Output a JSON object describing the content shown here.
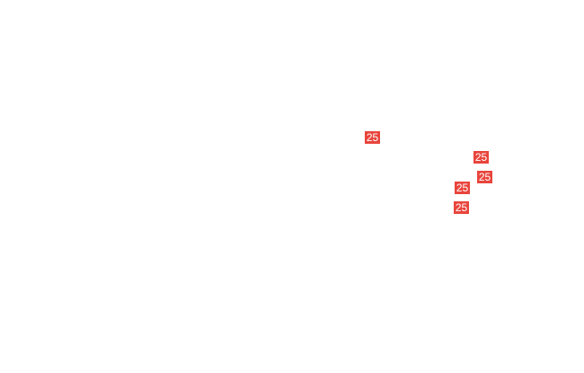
{
  "badge_color": "#e8453c",
  "badges": [
    {
      "label": "25"
    },
    {
      "label": "25"
    },
    {
      "label": "25"
    },
    {
      "label": "25"
    },
    {
      "label": "25"
    }
  ]
}
